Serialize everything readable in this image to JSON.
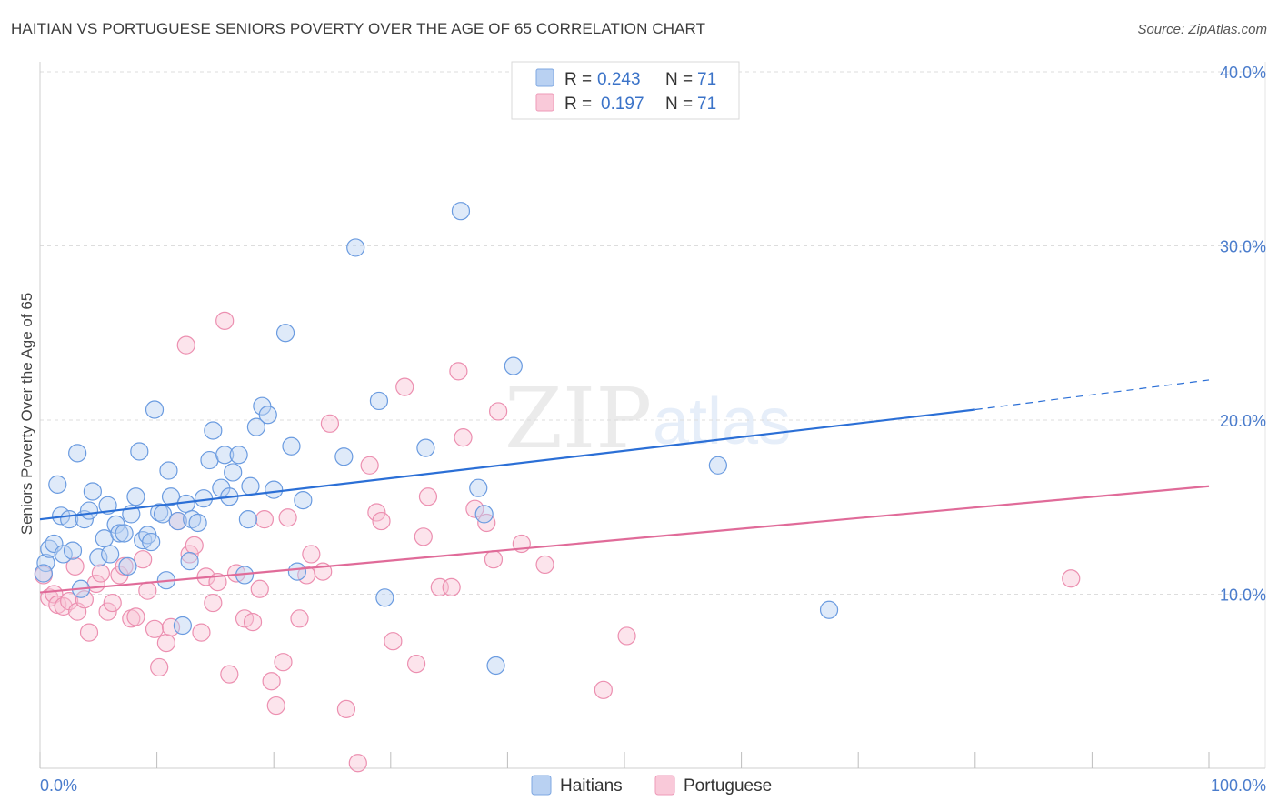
{
  "header": {
    "title": "HAITIAN VS PORTUGUESE SENIORS POVERTY OVER THE AGE OF 65 CORRELATION CHART",
    "source": "Source: ZipAtlas.com"
  },
  "watermark": {
    "zip": "ZIP",
    "atlas": "atlas"
  },
  "legend": {
    "rows": [
      {
        "r_label": "R =",
        "r_value": "0.243",
        "n_label": "N =",
        "n_value": "71"
      },
      {
        "r_label": "R =",
        "r_value": "0.197",
        "n_label": "N =",
        "n_value": "71"
      }
    ]
  },
  "chart_data": {
    "type": "scatter",
    "title": "HAITIAN VS PORTUGUESE SENIORS POVERTY OVER THE AGE OF 65 CORRELATION CHART",
    "xlabel": "",
    "ylabel": "Seniors Poverty Over the Age of 65",
    "xlim": [
      0,
      100
    ],
    "ylim": [
      0,
      40
    ],
    "x_tick_labels": [
      "0.0%",
      "100.0%"
    ],
    "y_ticks": [
      10,
      20,
      30,
      40
    ],
    "y_tick_labels": [
      "10.0%",
      "20.0%",
      "30.0%",
      "40.0%"
    ],
    "grid": true,
    "legend_position": "top-center",
    "colors": {
      "Haitians": "#6a9be0",
      "Portuguese": "#ef8fb0",
      "Haitians_line": "#2b6fd6",
      "Portuguese_line": "#e06b99"
    },
    "series": [
      {
        "name": "Haitians",
        "R": 0.243,
        "N": 71,
        "trend": {
          "x0": 0,
          "y0": 14.3,
          "x1": 80,
          "y1": 20.6,
          "dash_to_x": 100,
          "dash_to_y": 22.3
        },
        "points": [
          [
            0.5,
            11.8
          ],
          [
            0.8,
            12.6
          ],
          [
            1.2,
            12.9
          ],
          [
            1.5,
            16.3
          ],
          [
            1.8,
            14.5
          ],
          [
            2.0,
            12.3
          ],
          [
            2.5,
            14.3
          ],
          [
            2.8,
            12.5
          ],
          [
            3.2,
            18.1
          ],
          [
            3.5,
            10.3
          ],
          [
            3.8,
            14.3
          ],
          [
            4.2,
            14.8
          ],
          [
            4.5,
            15.9
          ],
          [
            5.0,
            12.1
          ],
          [
            5.5,
            13.2
          ],
          [
            5.8,
            15.1
          ],
          [
            6.0,
            12.3
          ],
          [
            6.5,
            14.0
          ],
          [
            6.8,
            13.5
          ],
          [
            7.2,
            13.5
          ],
          [
            7.5,
            11.6
          ],
          [
            7.8,
            14.6
          ],
          [
            8.2,
            15.6
          ],
          [
            8.5,
            18.2
          ],
          [
            8.8,
            13.1
          ],
          [
            9.2,
            13.4
          ],
          [
            9.5,
            13.0
          ],
          [
            9.8,
            20.6
          ],
          [
            10.2,
            14.7
          ],
          [
            10.5,
            14.6
          ],
          [
            10.8,
            10.8
          ],
          [
            11.0,
            17.1
          ],
          [
            11.2,
            15.6
          ],
          [
            11.8,
            14.2
          ],
          [
            12.2,
            8.2
          ],
          [
            12.5,
            15.2
          ],
          [
            12.8,
            11.9
          ],
          [
            13.0,
            14.3
          ],
          [
            13.5,
            14.1
          ],
          [
            14.0,
            15.5
          ],
          [
            14.5,
            17.7
          ],
          [
            14.8,
            19.4
          ],
          [
            15.5,
            16.1
          ],
          [
            15.8,
            18.0
          ],
          [
            16.2,
            15.6
          ],
          [
            16.5,
            17.0
          ],
          [
            17.0,
            18.0
          ],
          [
            17.5,
            11.1
          ],
          [
            17.8,
            14.3
          ],
          [
            18.0,
            16.2
          ],
          [
            18.5,
            19.6
          ],
          [
            19.0,
            20.8
          ],
          [
            19.5,
            20.3
          ],
          [
            20.0,
            16.0
          ],
          [
            21.0,
            25.0
          ],
          [
            21.5,
            18.5
          ],
          [
            22.0,
            11.3
          ],
          [
            22.5,
            15.4
          ],
          [
            26.0,
            17.9
          ],
          [
            27.0,
            29.9
          ],
          [
            29.0,
            21.1
          ],
          [
            29.5,
            9.8
          ],
          [
            33.0,
            18.4
          ],
          [
            36.0,
            32.0
          ],
          [
            37.5,
            16.1
          ],
          [
            38.0,
            14.6
          ],
          [
            39.0,
            5.9
          ],
          [
            40.5,
            23.1
          ],
          [
            58.0,
            17.4
          ],
          [
            67.5,
            9.1
          ],
          [
            0.3,
            11.2
          ]
        ]
      },
      {
        "name": "Portuguese",
        "R": 0.197,
        "N": 71,
        "trend": {
          "x0": 0,
          "y0": 10.1,
          "x1": 100,
          "y1": 16.2
        },
        "points": [
          [
            0.3,
            11.1
          ],
          [
            0.8,
            9.8
          ],
          [
            1.2,
            10.0
          ],
          [
            1.5,
            9.4
          ],
          [
            2.0,
            9.3
          ],
          [
            2.5,
            9.6
          ],
          [
            3.0,
            11.6
          ],
          [
            3.2,
            9.0
          ],
          [
            3.8,
            9.7
          ],
          [
            4.2,
            7.8
          ],
          [
            4.8,
            10.6
          ],
          [
            5.2,
            11.2
          ],
          [
            5.8,
            9.0
          ],
          [
            6.2,
            9.5
          ],
          [
            6.8,
            11.1
          ],
          [
            7.2,
            11.6
          ],
          [
            7.8,
            8.6
          ],
          [
            8.2,
            8.7
          ],
          [
            8.8,
            12.0
          ],
          [
            9.2,
            10.2
          ],
          [
            9.8,
            8.0
          ],
          [
            10.2,
            5.8
          ],
          [
            10.8,
            7.2
          ],
          [
            11.2,
            8.1
          ],
          [
            11.8,
            14.2
          ],
          [
            12.5,
            24.3
          ],
          [
            12.8,
            12.3
          ],
          [
            13.2,
            12.8
          ],
          [
            13.8,
            7.8
          ],
          [
            14.2,
            11.0
          ],
          [
            14.8,
            9.5
          ],
          [
            15.2,
            10.7
          ],
          [
            15.8,
            25.7
          ],
          [
            16.2,
            5.4
          ],
          [
            16.8,
            11.2
          ],
          [
            17.5,
            8.6
          ],
          [
            18.2,
            8.4
          ],
          [
            18.8,
            10.3
          ],
          [
            19.2,
            14.3
          ],
          [
            19.8,
            5.0
          ],
          [
            20.2,
            3.6
          ],
          [
            20.8,
            6.1
          ],
          [
            21.2,
            14.4
          ],
          [
            22.2,
            8.6
          ],
          [
            22.8,
            11.1
          ],
          [
            23.2,
            12.3
          ],
          [
            24.2,
            11.3
          ],
          [
            24.8,
            19.8
          ],
          [
            26.2,
            3.4
          ],
          [
            27.2,
            0.3
          ],
          [
            28.2,
            17.4
          ],
          [
            28.8,
            14.7
          ],
          [
            29.2,
            14.2
          ],
          [
            30.2,
            7.3
          ],
          [
            31.2,
            21.9
          ],
          [
            32.2,
            6.0
          ],
          [
            32.8,
            13.3
          ],
          [
            33.2,
            15.6
          ],
          [
            34.2,
            10.4
          ],
          [
            35.2,
            10.4
          ],
          [
            35.8,
            22.8
          ],
          [
            36.2,
            19.0
          ],
          [
            37.2,
            14.9
          ],
          [
            38.2,
            14.1
          ],
          [
            38.8,
            12.0
          ],
          [
            39.2,
            20.5
          ],
          [
            41.2,
            12.9
          ],
          [
            43.2,
            11.7
          ],
          [
            48.2,
            4.5
          ],
          [
            50.2,
            7.6
          ],
          [
            88.2,
            10.9
          ]
        ]
      }
    ]
  },
  "bottom_legend": {
    "items": [
      "Haitians",
      "Portuguese"
    ]
  }
}
